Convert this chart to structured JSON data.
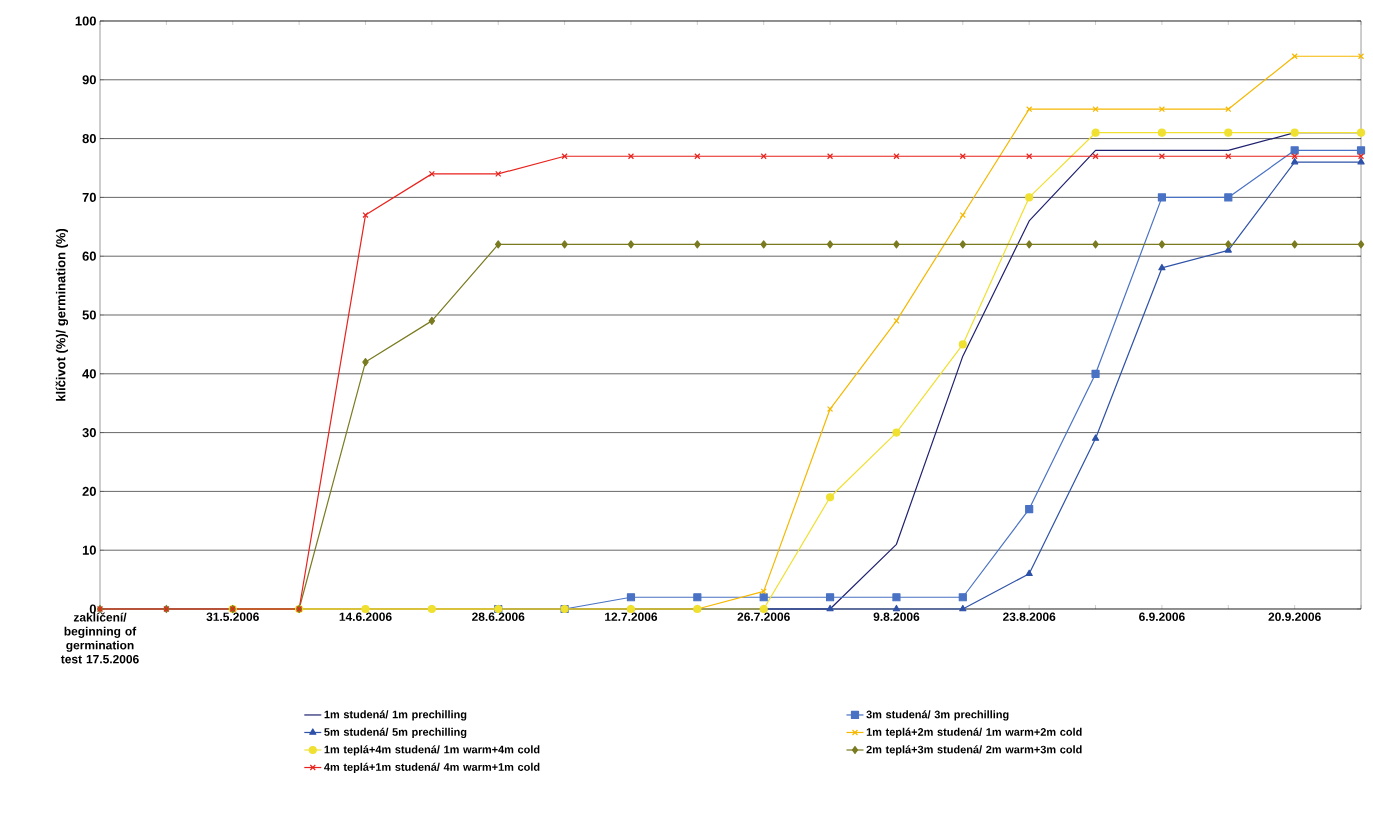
{
  "chart_data": {
    "type": "line",
    "ylabel": "klíčivot (%)/ germination (%)",
    "categories": [
      "zaklíčení/ beginning of germination test 17.5.2006",
      null,
      "31.5.2006",
      null,
      "14.6.2006",
      null,
      "28.6.2006",
      null,
      "12.7.2006",
      null,
      "26.7.2006",
      null,
      "9.8.2006",
      null,
      "23.8.2006",
      null,
      "6.9.2006",
      null,
      "20.9.2006",
      null
    ],
    "series": [
      {
        "name": "1m studená/ 1m prechilling",
        "color": "#1f2070",
        "marker": "none",
        "values": [
          null,
          null,
          null,
          null,
          null,
          null,
          0,
          0,
          0,
          0,
          0,
          0,
          11,
          43,
          66,
          78,
          78,
          78,
          81,
          81
        ]
      },
      {
        "name": "3m studená/ 3m prechilling",
        "color": "#4a72c4",
        "marker": "square",
        "values": [
          null,
          null,
          null,
          null,
          null,
          null,
          0,
          0,
          2,
          2,
          2,
          2,
          2,
          2,
          17,
          40,
          70,
          70,
          78,
          78
        ]
      },
      {
        "name": "5m studená/ 5m prechilling",
        "color": "#2e52a8",
        "marker": "triangle",
        "values": [
          null,
          null,
          null,
          null,
          null,
          null,
          0,
          0,
          0,
          0,
          0,
          0,
          0,
          0,
          6,
          29,
          58,
          61,
          76,
          76
        ]
      },
      {
        "name": "1m teplá+2m studená/ 1m warm+2m cold",
        "color": "#f5b800",
        "marker": "cross",
        "values": [
          null,
          null,
          null,
          0,
          0,
          0,
          0,
          0,
          0,
          0,
          3,
          34,
          49,
          67,
          85,
          85,
          85,
          85,
          94,
          94
        ]
      },
      {
        "name": "1m teplá+4m studená/ 1m warm+4m cold",
        "color": "#f0e030",
        "marker": "circle",
        "values": [
          null,
          null,
          0,
          0,
          0,
          0,
          0,
          0,
          0,
          0,
          0,
          19,
          30,
          45,
          70,
          81,
          81,
          81,
          81,
          81
        ]
      },
      {
        "name": "2m teplá+3m studená/ 2m warm+3m cold",
        "color": "#7a7a20",
        "marker": "diamond",
        "values": [
          0,
          0,
          0,
          0,
          42,
          49,
          62,
          62,
          62,
          62,
          62,
          62,
          62,
          62,
          62,
          62,
          62,
          62,
          62,
          62
        ]
      },
      {
        "name": "4m teplá+1m studená/ 4m warm+1m cold",
        "color": "#e8221c",
        "marker": "cross",
        "values": [
          0,
          0,
          0,
          0,
          67,
          74,
          74,
          77,
          77,
          77,
          77,
          77,
          77,
          77,
          77,
          77,
          77,
          77,
          77,
          77
        ]
      }
    ],
    "ylim": [
      0,
      100
    ],
    "yticks": [
      0,
      10,
      20,
      30,
      40,
      50,
      60,
      70,
      80,
      90,
      100
    ],
    "grid": "y",
    "legend": "bottom"
  }
}
